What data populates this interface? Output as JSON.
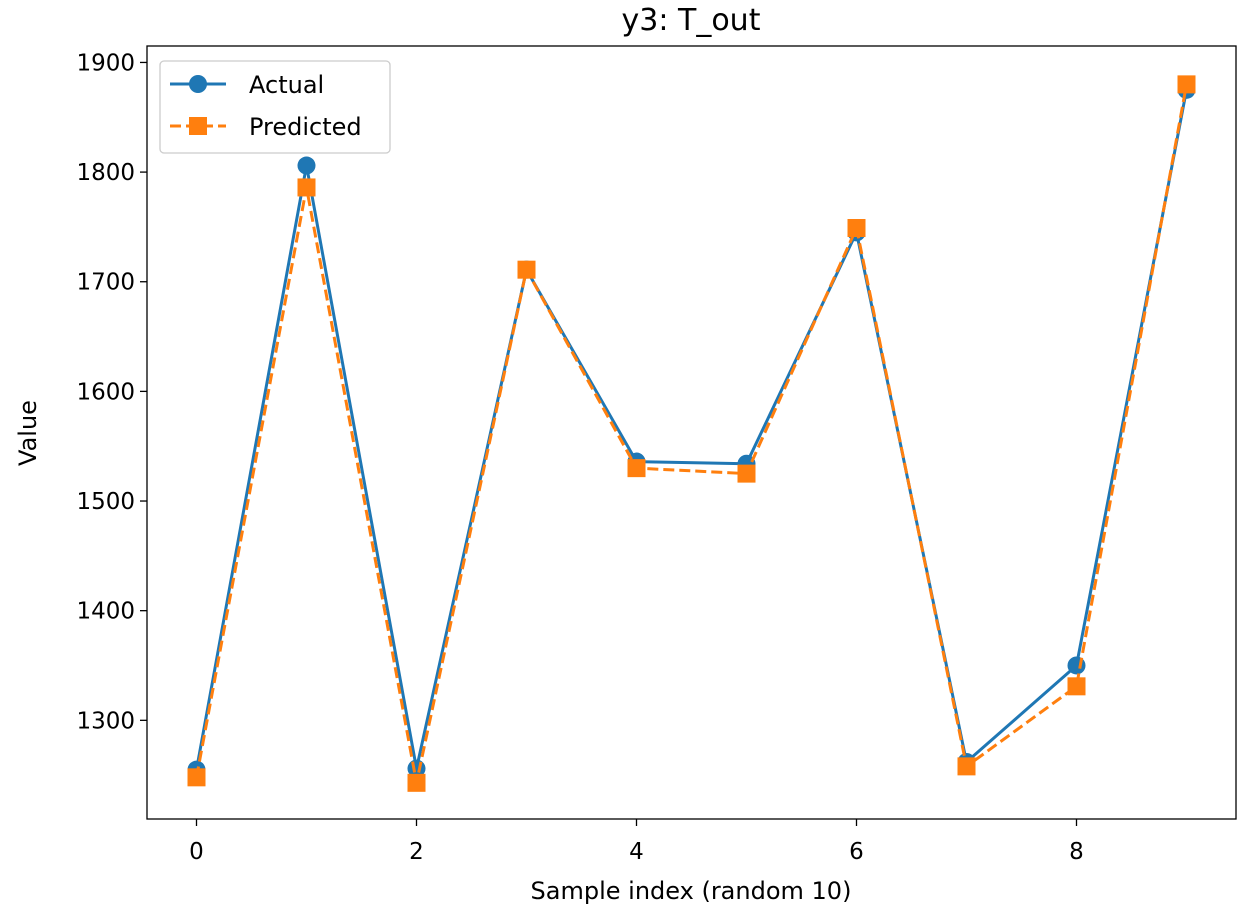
{
  "chart_data": {
    "type": "line",
    "title": "y3: T_out",
    "xlabel": "Sample index (random 10)",
    "ylabel": "Value",
    "xlim": [
      -0.45,
      9.45
    ],
    "ylim": [
      1210,
      1915
    ],
    "xticks": [
      0,
      2,
      4,
      6,
      8
    ],
    "yticks": [
      1300,
      1400,
      1500,
      1600,
      1700,
      1800,
      1900
    ],
    "grid": false,
    "legend_position": "top-left",
    "x": [
      0,
      1,
      2,
      3,
      4,
      5,
      6,
      7,
      8,
      9
    ],
    "series": [
      {
        "name": "Actual",
        "color": "#1f77b4",
        "marker": "circle",
        "linestyle": "solid",
        "values": [
          1255,
          1806,
          1256,
          1711,
          1536,
          1534,
          1745,
          1262,
          1350,
          1875
        ]
      },
      {
        "name": "Predicted",
        "color": "#ff7f0e",
        "marker": "square",
        "linestyle": "dashed",
        "values": [
          1248,
          1786,
          1243,
          1711,
          1530,
          1525,
          1749,
          1258,
          1331,
          1880
        ]
      }
    ]
  }
}
